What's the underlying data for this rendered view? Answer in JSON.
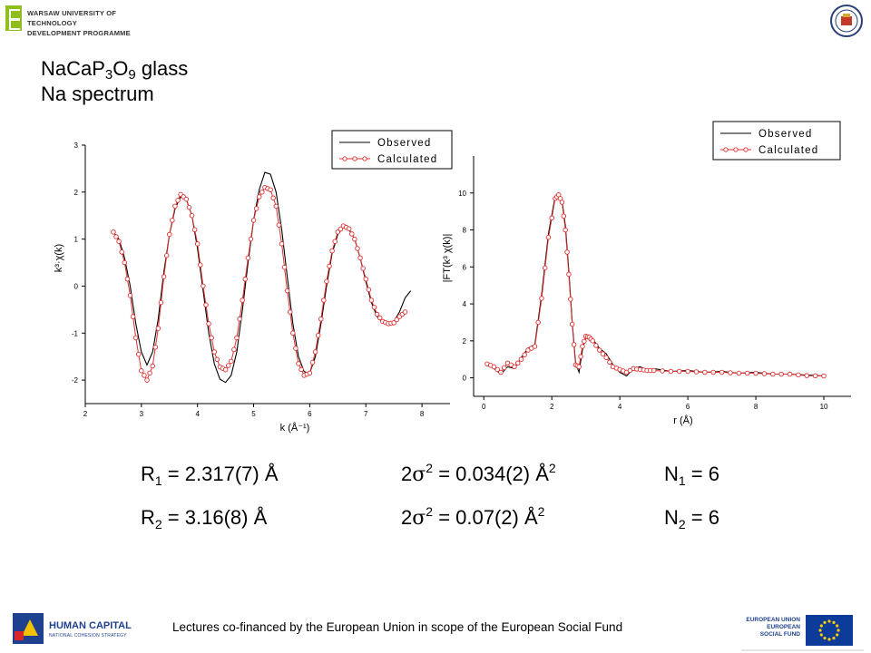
{
  "header": {
    "university_line1": "WARSAW UNIVERSITY OF TECHNOLOGY",
    "university_line2": "DEVELOPMENT PROGRAMME"
  },
  "title": {
    "line1": {
      "a": "NaCaP",
      "s1": "3",
      "b": "O",
      "s2": "9",
      "c": " glass"
    },
    "line2": "Na spectrum"
  },
  "chart_data": [
    {
      "type": "line",
      "xlabel": "k (Å⁻¹)",
      "ylabel": "k³·χ(k)",
      "xlim": [
        2,
        8.5
      ],
      "ylim": [
        -2.5,
        3
      ],
      "xticks": [
        "2",
        "3",
        "4",
        "5",
        "6",
        "7",
        "8"
      ],
      "yticks": [
        "-2",
        "-1",
        "0",
        "1",
        "2",
        "3"
      ],
      "legend": [
        "Observed",
        "Calculated"
      ],
      "legend_position": "top-right",
      "series": [
        {
          "name": "Observed",
          "color": "#000000",
          "x": [
            2.5,
            2.6,
            2.7,
            2.8,
            2.9,
            3.0,
            3.1,
            3.2,
            3.3,
            3.4,
            3.5,
            3.6,
            3.7,
            3.8,
            3.9,
            4.0,
            4.1,
            4.2,
            4.3,
            4.4,
            4.5,
            4.6,
            4.7,
            4.8,
            4.9,
            5.0,
            5.1,
            5.2,
            5.3,
            5.4,
            5.5,
            5.6,
            5.7,
            5.8,
            5.9,
            6.0,
            6.1,
            6.2,
            6.3,
            6.4,
            6.5,
            6.6,
            6.7,
            6.8,
            6.9,
            7.0,
            7.1,
            7.2,
            7.3,
            7.4,
            7.5,
            7.6,
            7.7,
            7.8
          ],
          "y": [
            1.15,
            1.0,
            0.6,
            0.0,
            -0.8,
            -1.4,
            -1.68,
            -1.4,
            -0.7,
            0.3,
            1.1,
            1.65,
            1.9,
            1.85,
            1.5,
            0.8,
            -0.1,
            -1.0,
            -1.65,
            -1.98,
            -2.05,
            -1.9,
            -1.4,
            -0.5,
            0.5,
            1.4,
            2.05,
            2.42,
            2.38,
            2.0,
            1.2,
            0.2,
            -0.8,
            -1.5,
            -1.82,
            -1.85,
            -1.5,
            -0.8,
            0.0,
            0.7,
            1.1,
            1.25,
            1.2,
            1.0,
            0.6,
            0.1,
            -0.35,
            -0.65,
            -0.78,
            -0.8,
            -0.75,
            -0.55,
            -0.25,
            -0.1
          ]
        },
        {
          "name": "Calculated",
          "color": "#e03030",
          "x": [
            2.5,
            2.6,
            2.7,
            2.8,
            2.9,
            3.0,
            3.1,
            3.2,
            3.3,
            3.4,
            3.5,
            3.6,
            3.7,
            3.8,
            3.9,
            4.0,
            4.1,
            4.2,
            4.3,
            4.4,
            4.5,
            4.6,
            4.7,
            4.8,
            4.9,
            5.0,
            5.1,
            5.2,
            5.3,
            5.4,
            5.5,
            5.6,
            5.7,
            5.8,
            5.9,
            6.0,
            6.1,
            6.2,
            6.3,
            6.4,
            6.5,
            6.6,
            6.7,
            6.8,
            6.9,
            7.0,
            7.1,
            7.2,
            7.3,
            7.4,
            7.5,
            7.6,
            7.7
          ],
          "y": [
            1.15,
            0.95,
            0.5,
            -0.2,
            -1.1,
            -1.8,
            -2.0,
            -1.7,
            -0.9,
            0.2,
            1.1,
            1.7,
            1.95,
            1.85,
            1.5,
            0.9,
            0.0,
            -0.8,
            -1.4,
            -1.72,
            -1.78,
            -1.6,
            -1.1,
            -0.3,
            0.6,
            1.4,
            1.9,
            2.1,
            2.05,
            1.7,
            0.9,
            -0.1,
            -1.0,
            -1.65,
            -1.9,
            -1.85,
            -1.4,
            -0.7,
            0.1,
            0.75,
            1.15,
            1.28,
            1.22,
            1.0,
            0.6,
            0.15,
            -0.3,
            -0.6,
            -0.75,
            -0.8,
            -0.78,
            -0.65,
            -0.55
          ]
        }
      ]
    },
    {
      "type": "line",
      "xlabel": "r (Å)",
      "ylabel": "|FT(k³ χ(k)|",
      "xlim": [
        -0.3,
        10.8
      ],
      "ylim": [
        -1,
        12
      ],
      "xticks": [
        "0",
        "2",
        "4",
        "6",
        "8",
        "10"
      ],
      "yticks": [
        "0",
        "2",
        "4",
        "6",
        "8",
        "10"
      ],
      "legend": [
        "Observed",
        "Calculated"
      ],
      "legend_position": "top-right",
      "series": [
        {
          "name": "Observed",
          "color": "#000000",
          "x": [
            0.1,
            0.3,
            0.5,
            0.7,
            0.9,
            1.1,
            1.3,
            1.5,
            1.7,
            1.9,
            2.1,
            2.2,
            2.3,
            2.4,
            2.5,
            2.6,
            2.7,
            2.8,
            2.9,
            3.0,
            3.1,
            3.2,
            3.4,
            3.6,
            3.8,
            4.0,
            4.2,
            4.4,
            4.6,
            4.8,
            5.0,
            5.5,
            6.0,
            6.5,
            7.0,
            7.5,
            8.0,
            8.5,
            9.0,
            9.5,
            10.0
          ],
          "y": [
            0.7,
            0.5,
            0.2,
            0.6,
            0.5,
            1.1,
            1.6,
            1.8,
            4.5,
            7.8,
            9.8,
            10.0,
            9.6,
            8.2,
            5.8,
            3.0,
            0.8,
            0.3,
            1.5,
            2.2,
            2.3,
            2.1,
            1.6,
            1.3,
            0.7,
            0.3,
            0.1,
            0.5,
            0.6,
            0.4,
            0.5,
            0.35,
            0.4,
            0.3,
            0.35,
            0.25,
            0.3,
            0.2,
            0.2,
            0.15,
            0.1
          ]
        },
        {
          "name": "Calculated",
          "color": "#e03030",
          "x": [
            0.1,
            0.3,
            0.5,
            0.7,
            0.9,
            1.1,
            1.3,
            1.5,
            1.7,
            1.9,
            2.1,
            2.2,
            2.3,
            2.4,
            2.5,
            2.6,
            2.7,
            2.8,
            2.9,
            3.0,
            3.1,
            3.2,
            3.4,
            3.6,
            3.8,
            4.0,
            4.2,
            4.4,
            4.6,
            4.8,
            5.0,
            5.5,
            6.0,
            6.5,
            7.0,
            7.5,
            8.0,
            8.5,
            9.0,
            9.5,
            10.0
          ],
          "y": [
            0.75,
            0.6,
            0.3,
            0.8,
            0.6,
            1.0,
            1.5,
            1.7,
            4.3,
            7.6,
            9.7,
            9.9,
            9.5,
            8.0,
            5.6,
            2.9,
            0.7,
            0.6,
            1.7,
            2.25,
            2.2,
            2.0,
            1.5,
            1.1,
            0.6,
            0.45,
            0.3,
            0.5,
            0.45,
            0.4,
            0.4,
            0.35,
            0.35,
            0.3,
            0.3,
            0.25,
            0.25,
            0.2,
            0.2,
            0.12,
            0.1
          ]
        }
      ]
    }
  ],
  "params": {
    "r1": {
      "a": "R",
      "s": "1",
      "b": " = 2.317(7) Å"
    },
    "r2": {
      "a": "R",
      "s": "2",
      "b": " = 3.16(8) Å"
    },
    "s1": {
      "a": "2",
      "sym": "σ",
      "p": "2",
      "b": " = 0.034(2) Å",
      "p2": "2"
    },
    "s2": {
      "a": "2",
      "sym": "σ",
      "p": "2",
      "b": " = 0.07(2) Å",
      "p2": "2"
    },
    "n1": {
      "a": "N",
      "s": "1",
      "b": " = 6"
    },
    "n2": {
      "a": "N",
      "s": "2",
      "b": " = 6"
    }
  },
  "footer": {
    "human_capital_title": "HUMAN CAPITAL",
    "human_capital_sub": "NATIONAL COHESION STRATEGY",
    "text": "Lectures co-financed by the European Union in scope of the European Social Fund",
    "eu_line1": "EUROPEAN UNION",
    "eu_line2": "EUROPEAN",
    "eu_line3": "SOCIAL FUND"
  },
  "colors": {
    "observed": "#000000",
    "calculated": "#e03030",
    "wut_green": "#8fbe1e",
    "hc_blue": "#1f3f8f",
    "eu_blue": "#0d3b99",
    "eu_star": "#ffcc00"
  },
  "icons": [
    "wut-logo-icon",
    "university-seal-icon",
    "human-capital-logo-icon",
    "eu-flag-icon"
  ]
}
